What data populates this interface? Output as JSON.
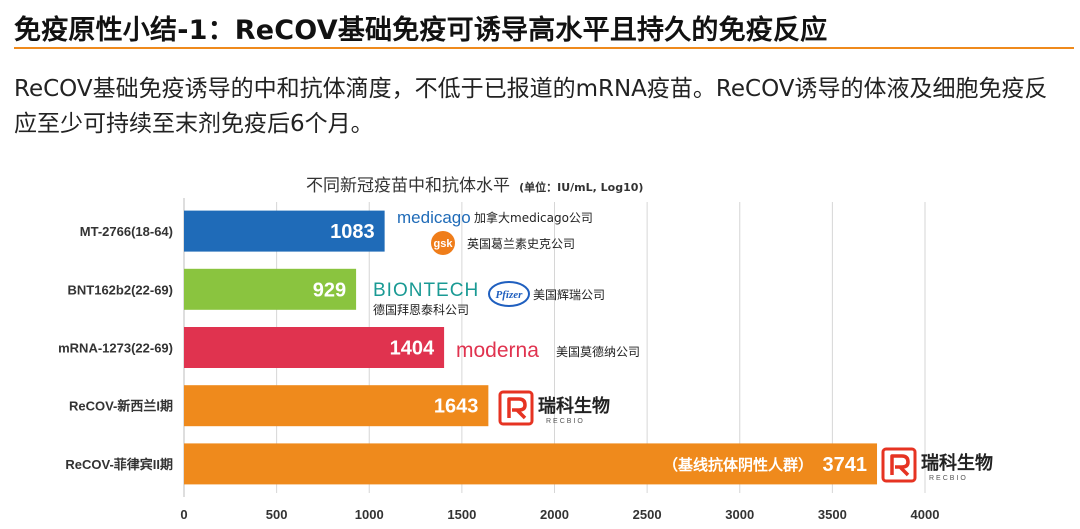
{
  "header": {
    "title": "免疫原性小结-1：ReCOV基础免疫可诱导高水平且持久的免疫反应",
    "summary": "ReCOV基础免疫诱导的中和抗体滴度，不低于已报道的mRNA疫苗。ReCOV诱导的体液及细胞免疫反应至少可持续至末剂免疫后6个月。"
  },
  "chart_data": {
    "type": "bar",
    "orientation": "horizontal",
    "title": "不同新冠疫苗中和抗体水平",
    "title_unit": "(单位：IU/mL, Log10)",
    "categories": [
      "MT-2766(18-64)",
      "BNT162b2(22-69)",
      "mRNA-1273(22-69)",
      "ReCOV-新西兰I期",
      "ReCOV-菲律宾II期"
    ],
    "values": [
      1083,
      929,
      1404,
      1643,
      3741
    ],
    "value_labels": [
      "1083",
      "929",
      "1404",
      "1643",
      "3741"
    ],
    "bar_colors": [
      "#1f6bb8",
      "#8ac43f",
      "#e0334f",
      "#ef8a1c",
      "#ef8a1c"
    ],
    "xlim": [
      0,
      4000
    ],
    "x_ticks": [
      0,
      500,
      1000,
      1500,
      2000,
      2500,
      3000,
      3500,
      4000
    ],
    "x_tick_labels": [
      "0",
      "500",
      "1000",
      "1500",
      "2000",
      "2500",
      "3000",
      "3500",
      "4000"
    ],
    "annotation": "（基线抗体阴性人群）",
    "grid": true
  },
  "companies": {
    "medicago": {
      "logo_text": "medicago",
      "name": "加拿大medicago公司",
      "color": "#1f6bb8"
    },
    "gsk": {
      "logo_text": "gsk",
      "name": "英国葛兰素史克公司",
      "color": "#ef7d1a"
    },
    "biontech": {
      "logo_text": "BIONTECH",
      "name": "德国拜恩泰科公司",
      "color": "#1a9a94"
    },
    "pfizer": {
      "logo_text": "Pfizer",
      "name": "美国辉瑞公司",
      "color": "#1f5fbf"
    },
    "moderna": {
      "logo_text": "moderna",
      "name": "美国莫德纳公司",
      "color": "#e0334f"
    },
    "recbio": {
      "logo_cn": "瑞科生物",
      "logo_en": "RECBIO",
      "color": "#e63322"
    }
  }
}
